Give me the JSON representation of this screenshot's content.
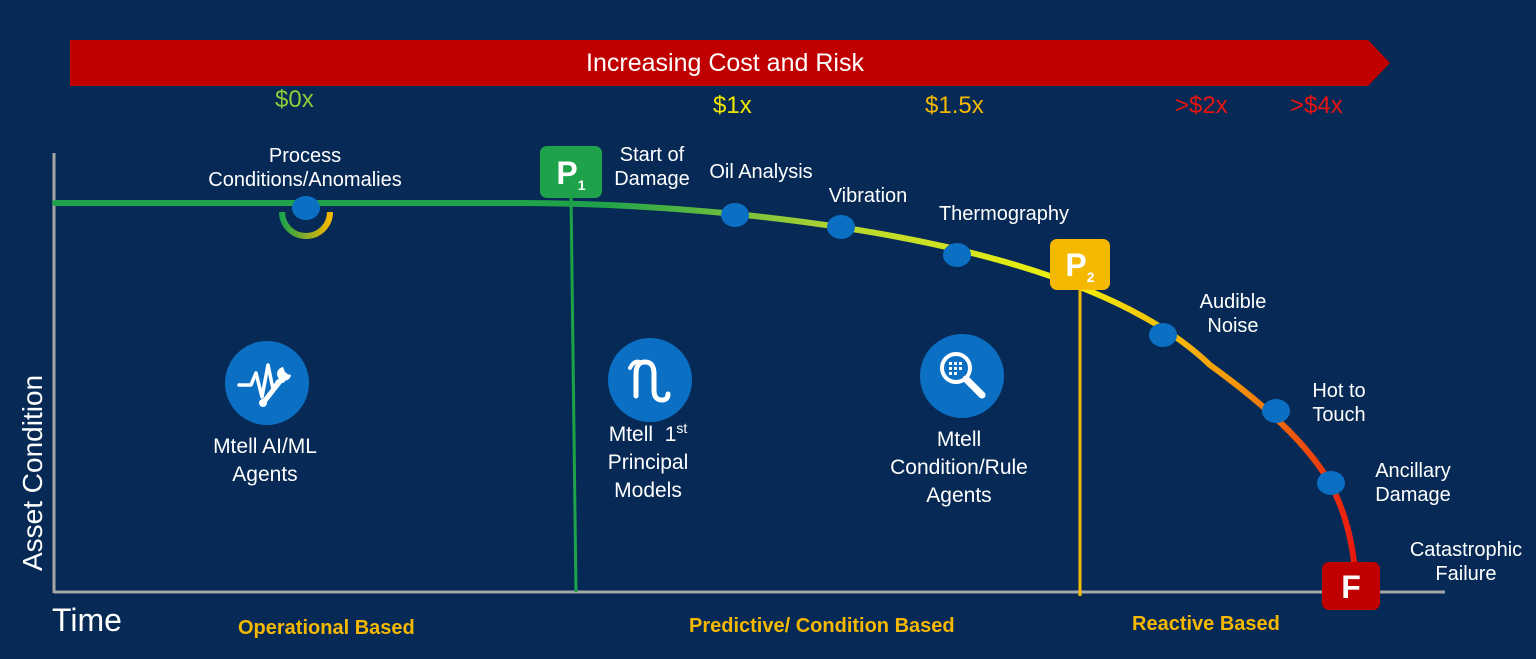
{
  "banner": {
    "label": "Increasing Cost and Risk",
    "color": "#c00000"
  },
  "cost_markers": [
    {
      "label": "$0x",
      "color": "#8fcc3a"
    },
    {
      "label": "$1x",
      "color": "#f2e600"
    },
    {
      "label": "$1.5x",
      "color": "#f5b800"
    },
    {
      "label": ">$2x",
      "color": "#e8140f"
    },
    {
      "label": ">$4x",
      "color": "#e8140f"
    }
  ],
  "axes": {
    "y_label": "Asset Condition",
    "x_label": "Time"
  },
  "milestones": {
    "p1": {
      "letter": "P",
      "sub": "1",
      "color": "#1ea34a",
      "label_line1": "Start of",
      "label_line2": "Damage"
    },
    "p2": {
      "letter": "P",
      "sub": "2",
      "color": "#f5b800"
    },
    "f": {
      "letter": "F",
      "color": "#c00000",
      "label_line1": "Catastrophic",
      "label_line2": "Failure"
    }
  },
  "indicators": {
    "process": {
      "line1": "Process",
      "line2": "Conditions/Anomalies"
    },
    "oil": "Oil Analysis",
    "vibration": "Vibration",
    "thermo": "Thermography",
    "noise": {
      "line1": "Audible",
      "line2": "Noise"
    },
    "hot": {
      "line1": "Hot to",
      "line2": "Touch"
    },
    "ancillary": {
      "line1": "Ancillary",
      "line2": "Damage"
    }
  },
  "agents": {
    "ai_ml": {
      "icon": "waveform-wrench-icon",
      "line1": "Mtell AI/ML",
      "line2": "Agents"
    },
    "principal": {
      "icon": "omega-symbol-icon",
      "line1a": "Mtell  1",
      "line1sup": "st",
      "line2": "Principal",
      "line3": "Models"
    },
    "condition": {
      "icon": "magnifier-icon",
      "line1": "Mtell",
      "line2": "Condition/Rule",
      "line3": "Agents"
    }
  },
  "phases": [
    "Operational Based",
    "Predictive/ Condition Based",
    "Reactive Based"
  ],
  "colors": {
    "background": "#062a55",
    "dot": "#0b6fc4",
    "phase_text": "#f5b800"
  }
}
